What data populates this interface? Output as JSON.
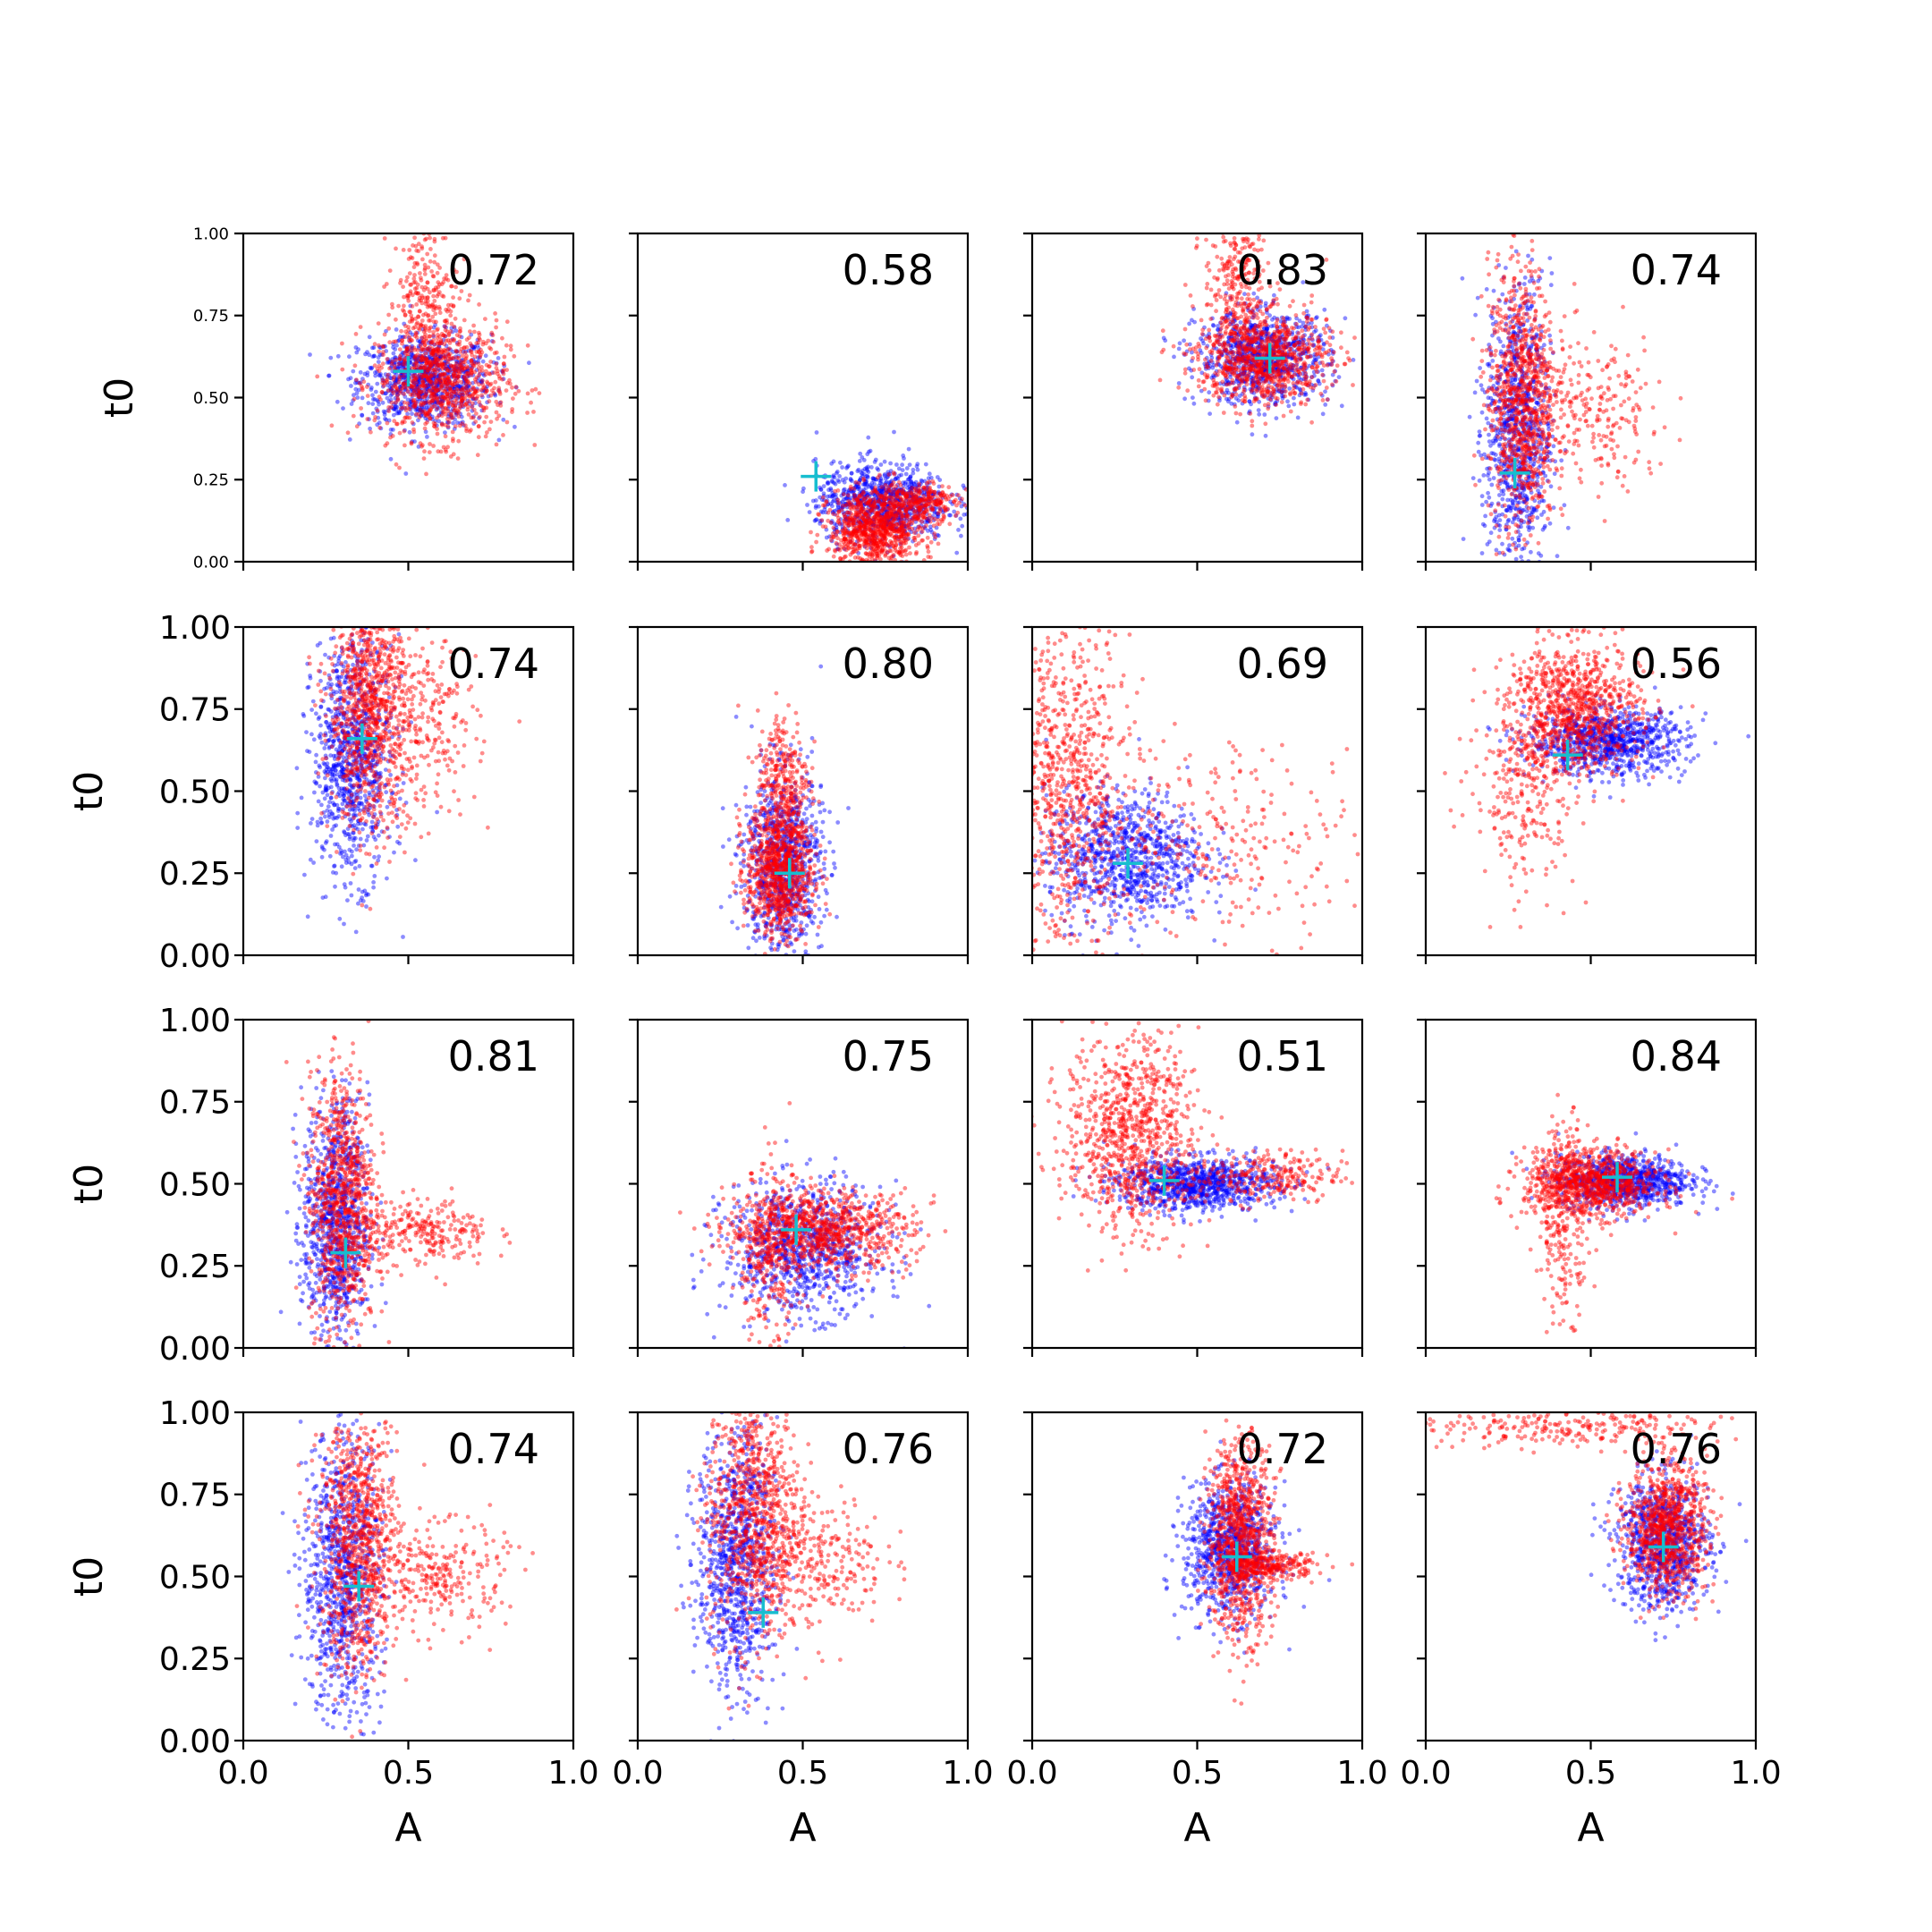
{
  "chart_data": {
    "type": "scatter",
    "grid": false,
    "layout": "4x4 panel grid",
    "xlabel": "A",
    "ylabel": "t0",
    "xlim": [
      0,
      1
    ],
    "ylim": [
      0,
      1
    ],
    "x_tick_labels": [
      "0.0",
      "0.5",
      "1.0"
    ],
    "y_tick_labels": [
      "0.00",
      "0.25",
      "0.50",
      "0.75",
      "1.00"
    ],
    "series_colors": {
      "blue": "#0000ff",
      "red": "#ff0000",
      "marker": "#17becf"
    },
    "panels": [
      {
        "r": 0,
        "c": 0,
        "corr": "0.72",
        "cross": [
          0.5,
          0.58
        ],
        "blue": [
          0.55,
          0.55,
          0.1,
          0.07
        ],
        "red": [
          0.6,
          0.55,
          0.1,
          0.09
        ],
        "redWing": [
          0.55,
          0.8,
          0.05,
          0.12
        ]
      },
      {
        "r": 0,
        "c": 1,
        "corr": "0.58",
        "cross": [
          0.54,
          0.26
        ],
        "blue": [
          0.74,
          0.18,
          0.1,
          0.06
        ],
        "red": [
          0.72,
          0.1,
          0.07,
          0.06
        ],
        "redWing": [
          0.85,
          0.18,
          0.06,
          0.03
        ]
      },
      {
        "r": 0,
        "c": 2,
        "corr": "0.83",
        "cross": [
          0.72,
          0.62
        ],
        "blue": [
          0.7,
          0.62,
          0.1,
          0.07
        ],
        "red": [
          0.7,
          0.62,
          0.1,
          0.07
        ],
        "redWing": [
          0.62,
          0.85,
          0.05,
          0.1
        ]
      },
      {
        "r": 0,
        "c": 3,
        "corr": "0.74",
        "cross": [
          0.27,
          0.27
        ],
        "blue": [
          0.28,
          0.4,
          0.05,
          0.22
        ],
        "red": [
          0.29,
          0.5,
          0.05,
          0.2
        ],
        "redWing": [
          0.5,
          0.45,
          0.12,
          0.12
        ]
      },
      {
        "r": 1,
        "c": 0,
        "corr": "0.74",
        "cross": [
          0.36,
          0.66
        ],
        "blue": [
          0.33,
          0.6,
          0.06,
          0.18
        ],
        "red": [
          0.38,
          0.75,
          0.06,
          0.18
        ],
        "redWing": [
          0.55,
          0.7,
          0.08,
          0.15
        ]
      },
      {
        "r": 1,
        "c": 1,
        "corr": "0.80",
        "cross": [
          0.46,
          0.25
        ],
        "blue": [
          0.44,
          0.28,
          0.06,
          0.14
        ],
        "red": [
          0.43,
          0.26,
          0.05,
          0.1
        ],
        "redWing": [
          0.44,
          0.55,
          0.04,
          0.1
        ]
      },
      {
        "r": 1,
        "c": 2,
        "corr": "0.69",
        "cross": [
          0.29,
          0.28
        ],
        "blue": [
          0.28,
          0.3,
          0.12,
          0.1
        ],
        "red": [
          0.1,
          0.5,
          0.1,
          0.25
        ],
        "redWing": [
          0.6,
          0.35,
          0.2,
          0.15
        ]
      },
      {
        "r": 1,
        "c": 3,
        "corr": "0.56",
        "cross": [
          0.43,
          0.61
        ],
        "blue": [
          0.55,
          0.65,
          0.12,
          0.05
        ],
        "red": [
          0.45,
          0.75,
          0.1,
          0.1
        ],
        "redWing": [
          0.3,
          0.5,
          0.08,
          0.15
        ]
      },
      {
        "r": 2,
        "c": 0,
        "corr": "0.81",
        "cross": [
          0.31,
          0.29
        ],
        "blue": [
          0.28,
          0.38,
          0.05,
          0.18
        ],
        "red": [
          0.3,
          0.45,
          0.05,
          0.2
        ],
        "redWing": [
          0.55,
          0.35,
          0.1,
          0.05
        ]
      },
      {
        "r": 2,
        "c": 1,
        "corr": "0.75",
        "cross": [
          0.48,
          0.36
        ],
        "blue": [
          0.5,
          0.3,
          0.12,
          0.1
        ],
        "red": [
          0.55,
          0.36,
          0.14,
          0.06
        ],
        "redWing": [
          0.4,
          0.25,
          0.05,
          0.15
        ]
      },
      {
        "r": 2,
        "c": 2,
        "corr": "0.51",
        "cross": [
          0.4,
          0.51
        ],
        "blue": [
          0.5,
          0.5,
          0.12,
          0.04
        ],
        "red": [
          0.3,
          0.65,
          0.1,
          0.15
        ],
        "redWing": [
          0.7,
          0.52,
          0.12,
          0.04
        ]
      },
      {
        "r": 2,
        "c": 3,
        "corr": "0.84",
        "cross": [
          0.58,
          0.52
        ],
        "blue": [
          0.6,
          0.51,
          0.1,
          0.04
        ],
        "red": [
          0.5,
          0.5,
          0.1,
          0.05
        ],
        "redWing": [
          0.42,
          0.4,
          0.04,
          0.15
        ]
      },
      {
        "r": 3,
        "c": 0,
        "corr": "0.74",
        "cross": [
          0.35,
          0.47
        ],
        "blue": [
          0.3,
          0.5,
          0.06,
          0.22
        ],
        "red": [
          0.35,
          0.6,
          0.06,
          0.2
        ],
        "redWing": [
          0.6,
          0.5,
          0.1,
          0.08
        ]
      },
      {
        "r": 3,
        "c": 1,
        "corr": "0.76",
        "cross": [
          0.38,
          0.39
        ],
        "blue": [
          0.3,
          0.55,
          0.06,
          0.2
        ],
        "red": [
          0.35,
          0.7,
          0.07,
          0.2
        ],
        "redWing": [
          0.55,
          0.55,
          0.1,
          0.1
        ]
      },
      {
        "r": 3,
        "c": 2,
        "corr": "0.72",
        "cross": [
          0.62,
          0.56
        ],
        "blue": [
          0.6,
          0.58,
          0.07,
          0.1
        ],
        "red": [
          0.63,
          0.62,
          0.05,
          0.15
        ],
        "redWing": [
          0.72,
          0.53,
          0.07,
          0.02
        ]
      },
      {
        "r": 3,
        "c": 3,
        "corr": "0.76",
        "cross": [
          0.72,
          0.59
        ],
        "blue": [
          0.72,
          0.6,
          0.07,
          0.1
        ],
        "red": [
          0.73,
          0.65,
          0.06,
          0.1
        ],
        "redWing": [
          0.4,
          0.95,
          0.25,
          0.03
        ]
      }
    ]
  }
}
